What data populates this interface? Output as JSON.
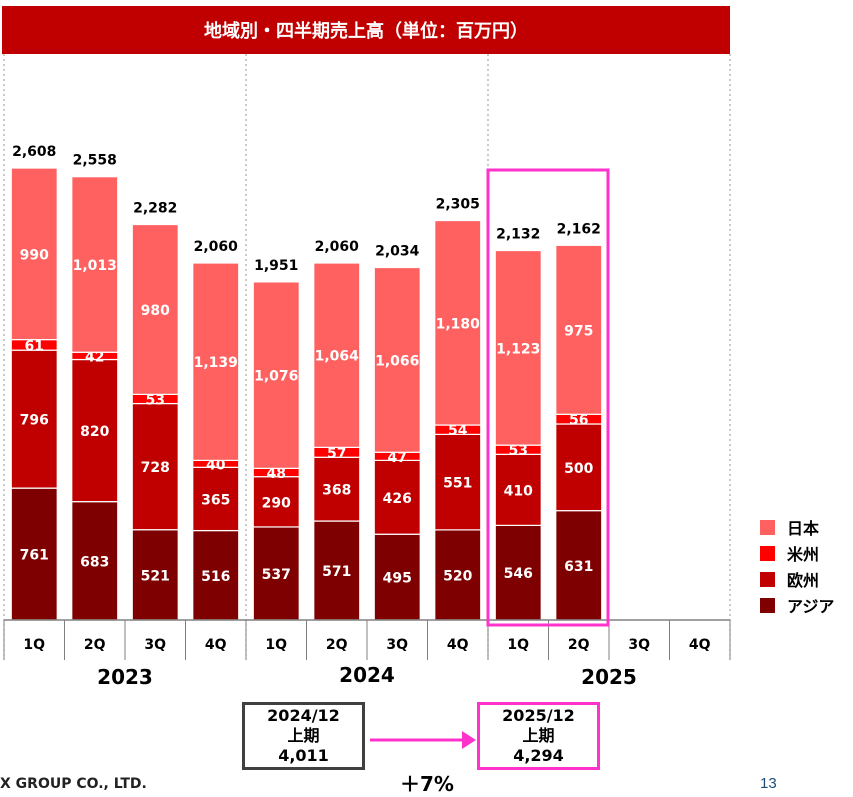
{
  "title": "地域別・四半期売上高（単位：百万円）",
  "colors": {
    "title_bg": "#c00000",
    "japan": "#ff6161",
    "americas": "#ff0000",
    "europe": "#c00000",
    "asia": "#7f0000",
    "highlight": "#ff33cc"
  },
  "chart_data": {
    "type": "bar",
    "stacked": true,
    "unit": "百万円",
    "categories": [
      "2023 1Q",
      "2023 2Q",
      "2023 3Q",
      "2023 4Q",
      "2024 1Q",
      "2024 2Q",
      "2024 3Q",
      "2024 4Q",
      "2025 1Q",
      "2025 2Q",
      "2025 3Q",
      "2025 4Q"
    ],
    "quarter_labels": [
      "1Q",
      "2Q",
      "3Q",
      "4Q",
      "1Q",
      "2Q",
      "3Q",
      "4Q",
      "1Q",
      "2Q",
      "3Q",
      "4Q"
    ],
    "years": [
      "2023",
      "2024",
      "2025"
    ],
    "series": [
      {
        "name": "アジア",
        "values": [
          761,
          683,
          521,
          516,
          537,
          571,
          495,
          520,
          546,
          631,
          null,
          null
        ]
      },
      {
        "name": "欧州",
        "values": [
          796,
          820,
          728,
          365,
          290,
          368,
          426,
          551,
          410,
          500,
          null,
          null
        ]
      },
      {
        "name": "米州",
        "values": [
          61,
          42,
          53,
          40,
          48,
          57,
          47,
          54,
          53,
          56,
          null,
          null
        ]
      },
      {
        "name": "日本",
        "values": [
          990,
          1013,
          980,
          1139,
          1076,
          1064,
          1066,
          1180,
          1123,
          975,
          null,
          null
        ]
      }
    ],
    "totals": [
      2608,
      2558,
      2282,
      2060,
      1951,
      2060,
      2034,
      2305,
      2132,
      2162,
      null,
      null
    ],
    "highlighted_period": "2025 1Q-2Q",
    "legend_position": "right",
    "ylim": [
      0,
      2800
    ]
  },
  "legend": [
    {
      "label": "日本",
      "key": "japan"
    },
    {
      "label": "米州",
      "key": "americas"
    },
    {
      "label": "欧州",
      "key": "europe"
    },
    {
      "label": "アジア",
      "key": "asia"
    }
  ],
  "summary": {
    "prev": {
      "period": "2024/12",
      "half": "上期",
      "value": "4,011"
    },
    "curr": {
      "period": "2025/12",
      "half": "上期",
      "value": "4,294"
    },
    "growth": "＋7%"
  },
  "footer": {
    "company": "X GROUP CO., LTD.",
    "page": "13"
  }
}
